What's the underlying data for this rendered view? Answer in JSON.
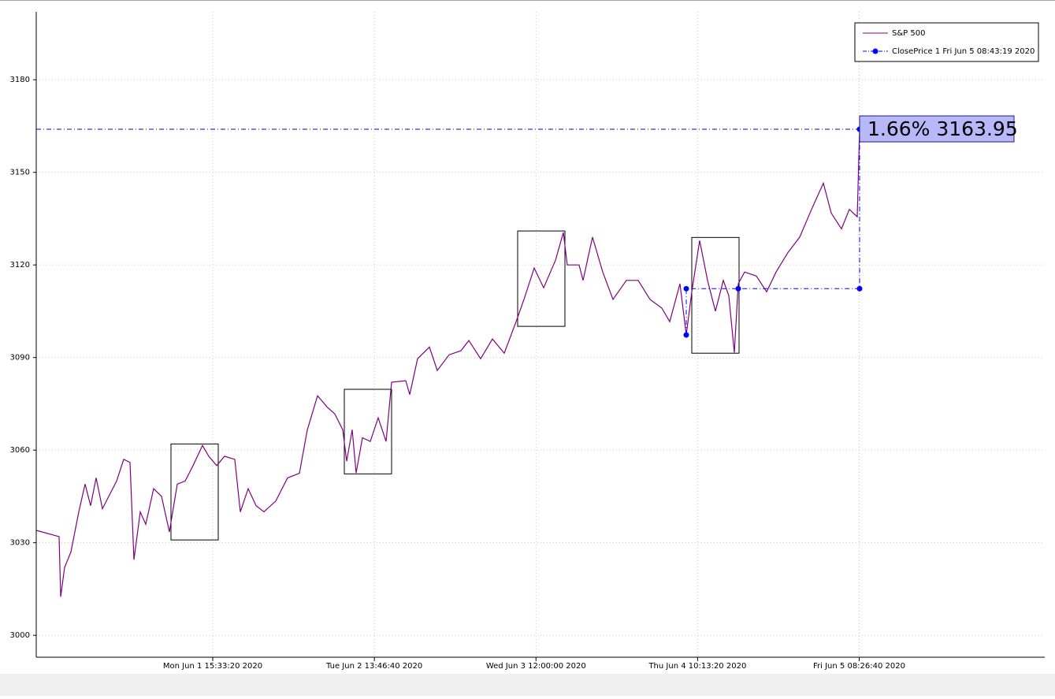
{
  "chart_data": {
    "type": "line",
    "xlim": [
      1590938240,
      1591437440
    ],
    "ylim": [
      2992.9,
      3202
    ],
    "xticks": [
      {
        "value": 1591025600,
        "label": "Mon Jun 1 15:33:20 2020"
      },
      {
        "value": 1591105600,
        "label": "Tue Jun 2 13:46:40 2020"
      },
      {
        "value": 1591185600,
        "label": "Wed Jun 3 12:00:00 2020"
      },
      {
        "value": 1591265600,
        "label": "Thu Jun 4 10:13:20 2020"
      },
      {
        "value": 1591345600,
        "label": "Fri Jun 5 08:26:40 2020"
      }
    ],
    "yticks": [
      3000,
      3030,
      3060,
      3090,
      3120,
      3150,
      3180
    ],
    "grid": true,
    "legend": "top-right",
    "series": [
      {
        "name": "S&P 500",
        "color": "#800080",
        "x": [
          1590938240,
          1590949550,
          1590950330,
          1590952280,
          1590955400,
          1590959300,
          1590962420,
          1590965150,
          1590967880,
          1590971000,
          1590974900,
          1590978020,
          1590981530,
          1590984650,
          1590986600,
          1590989720,
          1590992450,
          1590996350,
          1591000250,
          1591004150,
          1591008050,
          1591011950,
          1591015850,
          1591020530,
          1591023650,
          1591027550,
          1591031450,
          1591036520,
          1591039250,
          1591043150,
          1591047050,
          1591050950,
          1591056800,
          1591062650,
          1591068500,
          1591072400,
          1591077470,
          1591082150,
          1591086050,
          1591089950,
          1591091900,
          1591094630,
          1591096580,
          1591099700,
          1591103600,
          1591107500,
          1591111400,
          1591114130,
          1591121150,
          1591123100,
          1591127000,
          1591132850,
          1591136750,
          1591142600,
          1591148450,
          1591152350,
          1591158200,
          1591164050,
          1591169900,
          1591175750,
          1591179650,
          1591184720,
          1591189400,
          1591195250,
          1591199150,
          1591201100,
          1591206950,
          1591208900,
          1591213580,
          1591218650,
          1591223720,
          1591230350,
          1591236200,
          1591242050,
          1591247900,
          1591251800,
          1591256870,
          1591259990,
          1591262720,
          1591266620,
          1591270520,
          1591274420,
          1591278320,
          1591281050,
          1591283780,
          1591285730,
          1591288850,
          1591294700,
          1591299770,
          1591304450,
          1591310300,
          1591316150,
          1591322000,
          1591327850,
          1591331750,
          1591336820,
          1591340720,
          1591344620,
          1591345790
        ],
        "values": [
          3034,
          3032,
          3012.5,
          3022,
          3027,
          3040,
          3049,
          3042,
          3051,
          3041,
          3046,
          3050,
          3057,
          3056,
          3024.5,
          3040,
          3036,
          3047.5,
          3045,
          3033.5,
          3049,
          3050,
          3055,
          3061.5,
          3058,
          3055,
          3058,
          3057,
          3040,
          3047.5,
          3042,
          3040,
          3043.5,
          3051,
          3052.5,
          3066.5,
          3077.6,
          3074,
          3071.7,
          3066.6,
          3056.4,
          3066.6,
          3052.6,
          3064,
          3062.8,
          3070.5,
          3062.8,
          3082,
          3082.5,
          3078,
          3089.6,
          3093.4,
          3085.8,
          3090.9,
          3092.2,
          3095.5,
          3089.6,
          3096,
          3091.4,
          3101.6,
          3108.8,
          3119,
          3112.6,
          3121.5,
          3130.5,
          3120,
          3120,
          3115,
          3129,
          3117.7,
          3108.8,
          3115,
          3115,
          3108.8,
          3106,
          3101.6,
          3113.9,
          3097.3,
          3111.3,
          3127.9,
          3115,
          3105,
          3115,
          3110,
          3091.6,
          3113.9,
          3117.7,
          3116.4,
          3111.3,
          3117.7,
          3124,
          3129,
          3138,
          3146.5,
          3136.8,
          3131.7,
          3138,
          3135.6,
          3163.95
        ]
      },
      {
        "name": "ClosePrice 1 Fri Jun 5 08:43:19 2020",
        "color": "#0000ff",
        "x": [
          1591259990,
          1591259990,
          1591285730,
          1591345790,
          1591345790
        ],
        "values": [
          3097.3,
          3112.3,
          3112.3,
          3112.3,
          3163.95
        ]
      }
    ],
    "boxes": [
      {
        "x": [
          1591004930,
          1591028330
        ],
        "y": [
          3030.9,
          3062
        ]
      },
      {
        "x": [
          1591090730,
          1591114130
        ],
        "y": [
          3052.3,
          3079.7
        ]
      },
      {
        "x": [
          1591176530,
          1591199930
        ],
        "y": [
          3100.1,
          3131
        ]
      },
      {
        "x": [
          1591262720,
          1591286120
        ],
        "y": [
          3091.4,
          3128.9
        ]
      }
    ],
    "annotation": {
      "label": "1.66% 3163.95",
      "value": 3163.95,
      "color": "#b8b8f8"
    }
  }
}
